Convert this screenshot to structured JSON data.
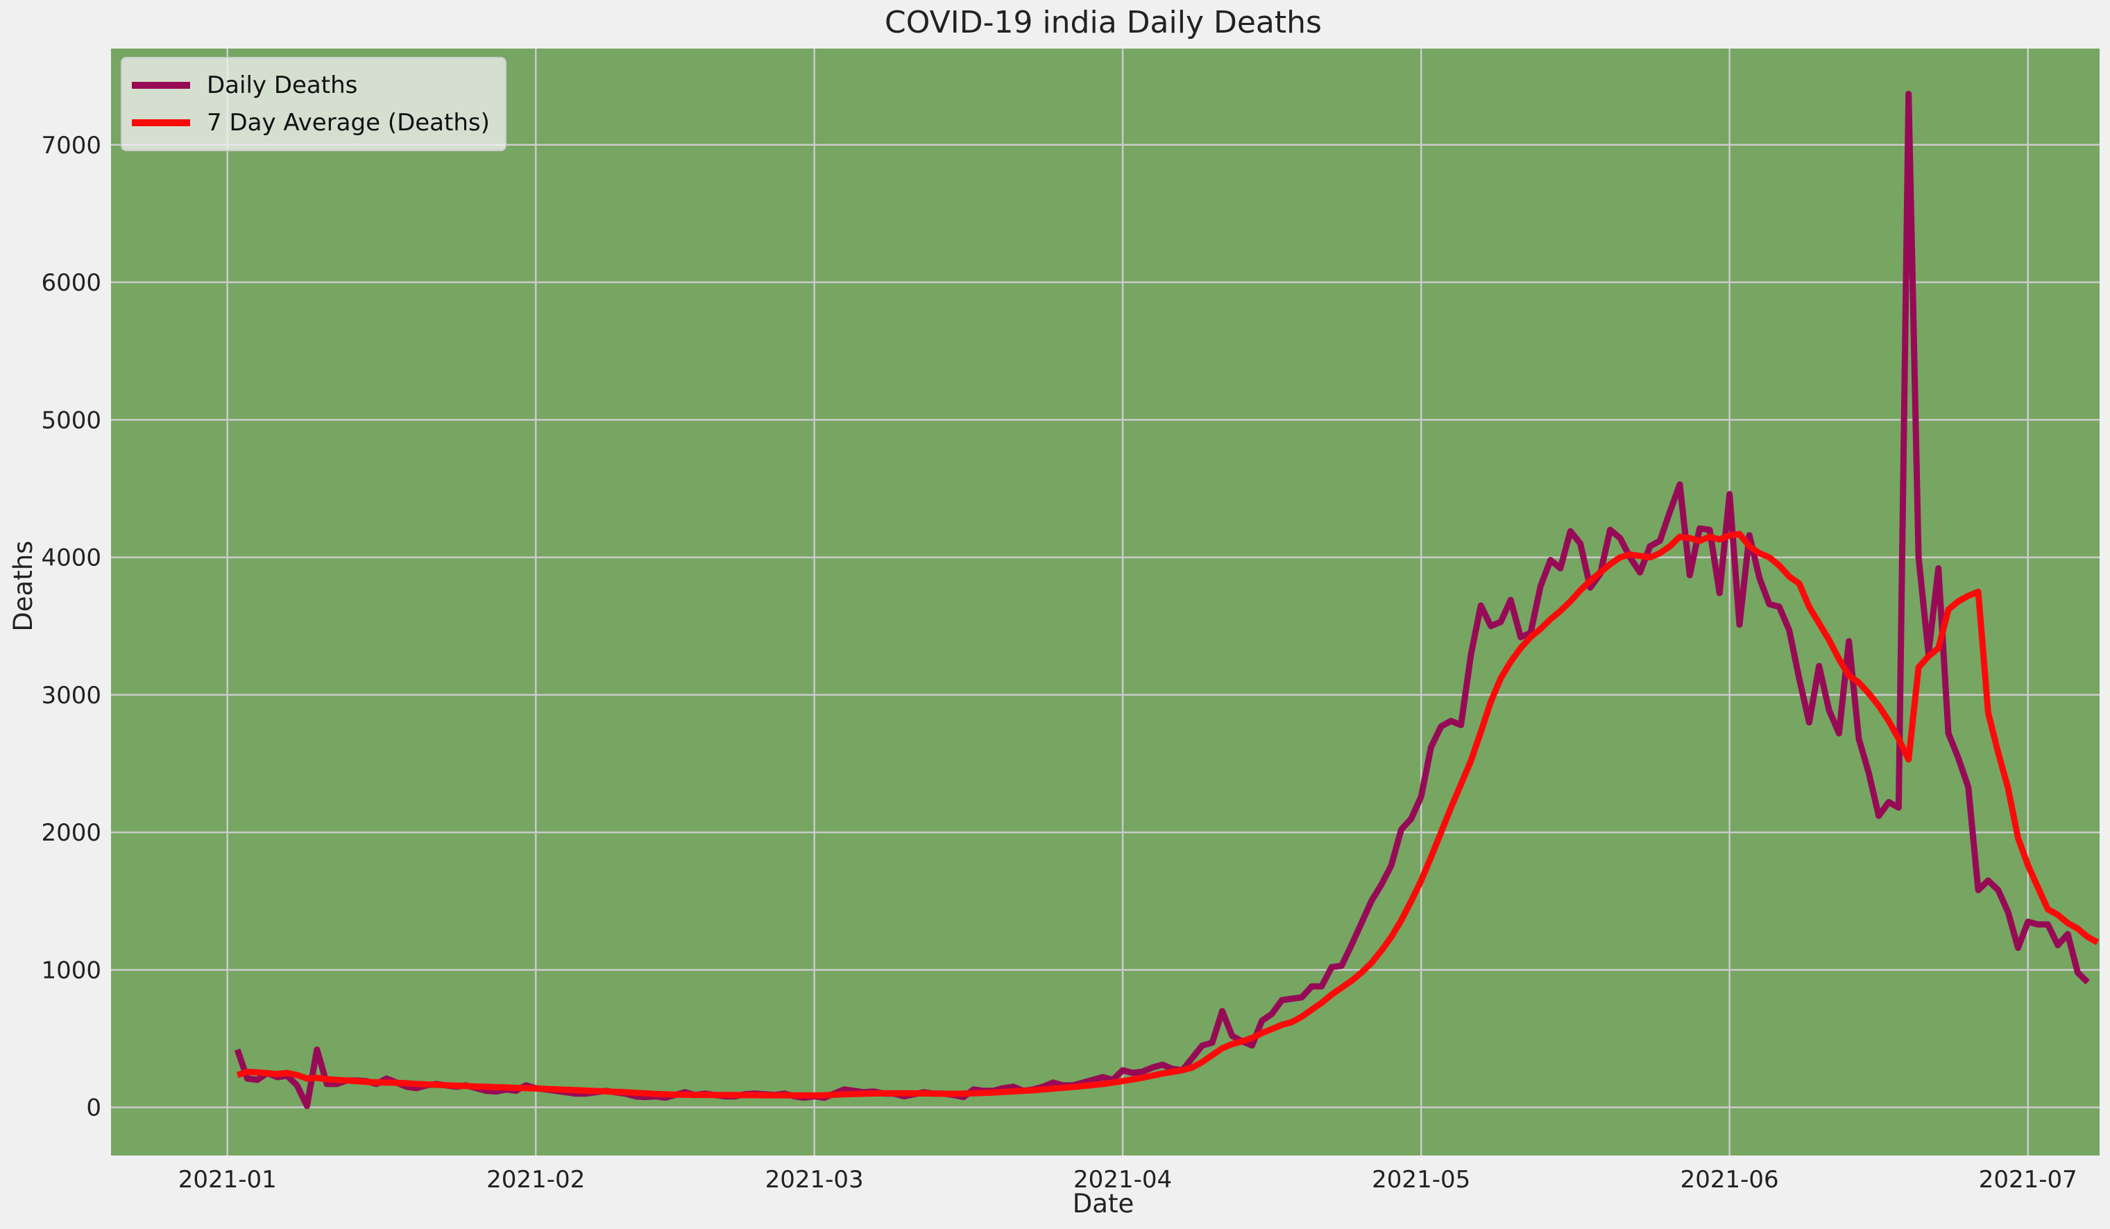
{
  "chart_data": {
    "type": "line",
    "title": "COVID-19 india Daily Deaths",
    "xlabel": "Date",
    "ylabel": "Deaths",
    "x_start": "2021-01-02",
    "x_end": "2021-06-29",
    "xlim": [
      "2021-01-02",
      "2021-06-29"
    ],
    "ylim": [
      -350,
      7700
    ],
    "x_ticks": [
      "2021-01",
      "2021-02",
      "2021-03",
      "2021-04",
      "2021-05",
      "2021-06",
      "2021-07"
    ],
    "y_ticks": [
      "0",
      "1000",
      "2000",
      "3000",
      "4000",
      "5000",
      "6000",
      "7000"
    ],
    "y_tick_values": [
      0,
      1000,
      2000,
      3000,
      4000,
      5000,
      6000,
      7000
    ],
    "grid": true,
    "legend_position": "top-left",
    "background_color": "#76a662",
    "series": [
      {
        "name": "Daily Deaths",
        "color": "#970b56",
        "values": [
          420,
          210,
          200,
          250,
          220,
          230,
          160,
          10,
          420,
          170,
          170,
          195,
          195,
          190,
          170,
          210,
          180,
          150,
          140,
          160,
          170,
          160,
          150,
          160,
          140,
          120,
          115,
          130,
          120,
          160,
          140,
          130,
          120,
          110,
          100,
          100,
          110,
          120,
          110,
          100,
          80,
          75,
          80,
          70,
          90,
          110,
          90,
          100,
          90,
          80,
          80,
          95,
          100,
          95,
          90,
          100,
          80,
          70,
          80,
          70,
          100,
          130,
          120,
          110,
          115,
          100,
          100,
          80,
          95,
          110,
          100,
          100,
          90,
          75,
          130,
          120,
          120,
          140,
          150,
          120,
          130,
          150,
          180,
          160,
          160,
          180,
          200,
          220,
          200,
          270,
          250,
          260,
          290,
          310,
          280,
          270,
          360,
          450,
          470,
          700,
          520,
          480,
          450,
          630,
          680,
          780,
          790,
          800,
          880,
          880,
          1020,
          1030,
          1180,
          1340,
          1500,
          1620,
          1760,
          2020,
          2100,
          2260,
          2620,
          2770,
          2810,
          2780,
          3290,
          3650,
          3500,
          3530,
          3690,
          3420,
          3450,
          3790,
          3980,
          3920,
          4190,
          4100,
          3780,
          3880,
          4200,
          4140,
          4000,
          3890,
          4080,
          4120,
          4330,
          4530,
          3870,
          4210,
          4200,
          3740,
          4460,
          3510,
          4160,
          3850,
          3660,
          3640,
          3470,
          3120,
          2800,
          3210,
          2890,
          2720,
          3390,
          2680,
          2430,
          2120,
          2220,
          2180,
          7370,
          4000,
          3300,
          3920,
          2720,
          2540,
          2330,
          1580,
          1650,
          1580,
          1420,
          1160,
          1350,
          1330,
          1330,
          1180,
          1260,
          980,
          910
        ]
      },
      {
        "name": "7 Day Average (Deaths)",
        "color": "#fc0a0a",
        "values": [
          235,
          258,
          255,
          248,
          242,
          250,
          235,
          210,
          215,
          205,
          200,
          195,
          190,
          185,
          182,
          180,
          178,
          175,
          170,
          167,
          164,
          161,
          158,
          155,
          152,
          150,
          147,
          145,
          142,
          140,
          137,
          134,
          131,
          128,
          125,
          122,
          119,
          116,
          113,
          110,
          106,
          102,
          98,
          95,
          93,
          92,
          91,
          91,
          90,
          90,
          90,
          89,
          89,
          88,
          88,
          88,
          87,
          87,
          87,
          88,
          92,
          95,
          97,
          99,
          101,
          102,
          103,
          103,
          102,
          101,
          100,
          99,
          99,
          100,
          102,
          105,
          108,
          112,
          116,
          120,
          124,
          130,
          136,
          142,
          148,
          155,
          162,
          170,
          180,
          191,
          203,
          216,
          231,
          246,
          258,
          270,
          290,
          330,
          380,
          430,
          460,
          480,
          505,
          540,
          570,
          600,
          620,
          660,
          710,
          760,
          820,
          870,
          920,
          980,
          1050,
          1140,
          1240,
          1360,
          1500,
          1650,
          1820,
          2000,
          2180,
          2350,
          2520,
          2730,
          2950,
          3120,
          3240,
          3340,
          3420,
          3480,
          3550,
          3610,
          3680,
          3760,
          3830,
          3890,
          3950,
          4000,
          4020,
          4010,
          4000,
          4030,
          4080,
          4150,
          4140,
          4120,
          4150,
          4130,
          4160,
          4170,
          4080,
          4030,
          4000,
          3940,
          3860,
          3810,
          3640,
          3520,
          3400,
          3260,
          3140,
          3090,
          3010,
          2920,
          2810,
          2680,
          2530,
          3200,
          3280,
          3340,
          3620,
          3680,
          3720,
          3750,
          2870,
          2580,
          2320,
          1960,
          1760,
          1600,
          1440,
          1400,
          1340,
          1300,
          1240,
          1200
        ]
      }
    ]
  }
}
